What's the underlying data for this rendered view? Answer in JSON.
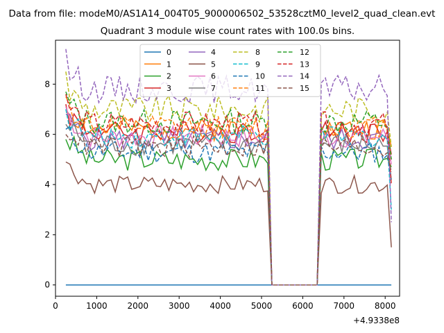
{
  "chart_data": {
    "type": "line",
    "suptitle": "Data from file: modeM0/AS1A14_004T05_9000006502_53528cztM0_level2_quad_clean.evt",
    "title": "Quadrant 3 module wise count rates with 100.0s bins.",
    "xlabel": "",
    "ylabel": "",
    "x_offset_label": "+4.9338e8",
    "xlim": [
      0,
      8350
    ],
    "ylim": [
      -0.45,
      9.75
    ],
    "xticks": [
      0,
      1000,
      2000,
      3000,
      4000,
      5000,
      6000,
      7000,
      8000
    ],
    "yticks": [
      0,
      2,
      4,
      6,
      8
    ],
    "x_start": 250,
    "bin_width": 100,
    "n_bins": 80,
    "gap": {
      "start": 5250,
      "end": 6350,
      "value": 0
    },
    "legend_location": "upper center",
    "legend_columns": 4,
    "series": [
      {
        "name": "0",
        "color": "#1f77b4",
        "dash": "solid",
        "base": 0.0,
        "first": 0.0,
        "last": 0.0,
        "amp": 0.0,
        "seed": 1
      },
      {
        "name": "1",
        "color": "#ff7f0e",
        "dash": "solid",
        "base": 6.2,
        "first": 7.0,
        "last": 5.5,
        "amp": 0.45,
        "seed": 2
      },
      {
        "name": "2",
        "color": "#2ca02c",
        "dash": "solid",
        "base": 5.0,
        "first": 5.8,
        "last": 4.7,
        "amp": 0.45,
        "seed": 3
      },
      {
        "name": "3",
        "color": "#d62728",
        "dash": "solid",
        "base": 6.1,
        "first": 7.2,
        "last": 5.2,
        "amp": 0.45,
        "seed": 4
      },
      {
        "name": "4",
        "color": "#9467bd",
        "dash": "solid",
        "base": 5.8,
        "first": 6.8,
        "last": 5.0,
        "amp": 0.45,
        "seed": 5
      },
      {
        "name": "5",
        "color": "#8c564b",
        "dash": "solid",
        "base": 4.0,
        "first": 4.9,
        "last": 1.5,
        "amp": 0.35,
        "seed": 6
      },
      {
        "name": "6",
        "color": "#e377c2",
        "dash": "solid",
        "base": 5.9,
        "first": 7.1,
        "last": 4.8,
        "amp": 0.45,
        "seed": 7
      },
      {
        "name": "7",
        "color": "#7f7f7f",
        "dash": "solid",
        "base": 5.6,
        "first": 6.4,
        "last": 4.2,
        "amp": 0.45,
        "seed": 8
      },
      {
        "name": "8",
        "color": "#bcbd22",
        "dash": "dashed",
        "base": 7.0,
        "first": 8.5,
        "last": 5.5,
        "amp": 0.55,
        "seed": 9
      },
      {
        "name": "9",
        "color": "#17becf",
        "dash": "dashed",
        "base": 5.9,
        "first": 7.0,
        "last": 3.0,
        "amp": 0.45,
        "seed": 10
      },
      {
        "name": "10",
        "color": "#1f77b4",
        "dash": "dashed",
        "base": 5.3,
        "first": 6.2,
        "last": 4.2,
        "amp": 0.45,
        "seed": 11
      },
      {
        "name": "11",
        "color": "#ff7f0e",
        "dash": "dashed",
        "base": 6.3,
        "first": 7.5,
        "last": 5.0,
        "amp": 0.45,
        "seed": 12
      },
      {
        "name": "12",
        "color": "#2ca02c",
        "dash": "dashed",
        "base": 6.5,
        "first": 7.7,
        "last": 5.0,
        "amp": 0.5,
        "seed": 13
      },
      {
        "name": "13",
        "color": "#d62728",
        "dash": "dashed",
        "base": 6.4,
        "first": 7.6,
        "last": 4.0,
        "amp": 0.5,
        "seed": 14
      },
      {
        "name": "14",
        "color": "#9467bd",
        "dash": "dashed",
        "base": 7.8,
        "first": 9.4,
        "last": 2.5,
        "amp": 0.55,
        "seed": 15
      },
      {
        "name": "15",
        "color": "#8c564b",
        "dash": "dashed",
        "base": 5.5,
        "first": 6.0,
        "last": 4.5,
        "amp": 0.45,
        "seed": 16
      }
    ]
  }
}
